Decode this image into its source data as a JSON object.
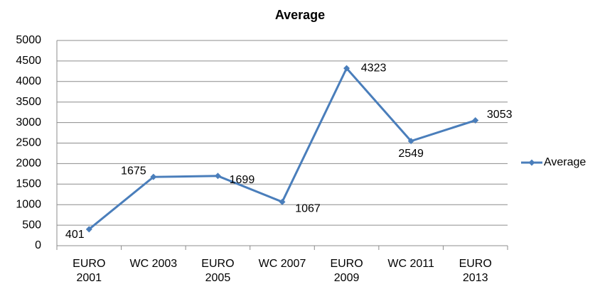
{
  "chart_data": {
    "type": "line",
    "title": "Average",
    "categories": [
      "EURO 2001",
      "WC 2003",
      "EURO 2005",
      "WC 2007",
      "EURO 2009",
      "WC 2011",
      "EURO 2013"
    ],
    "series": [
      {
        "name": "Average",
        "color": "#4a7ebb",
        "values": [
          401,
          1675,
          1699,
          1067,
          4323,
          2549,
          3053
        ]
      }
    ],
    "ylim": [
      0,
      5000
    ],
    "yticks": [
      0,
      500,
      1000,
      1500,
      2000,
      2500,
      3000,
      3500,
      4000,
      4500,
      5000
    ],
    "grid": true,
    "legend": "right"
  }
}
